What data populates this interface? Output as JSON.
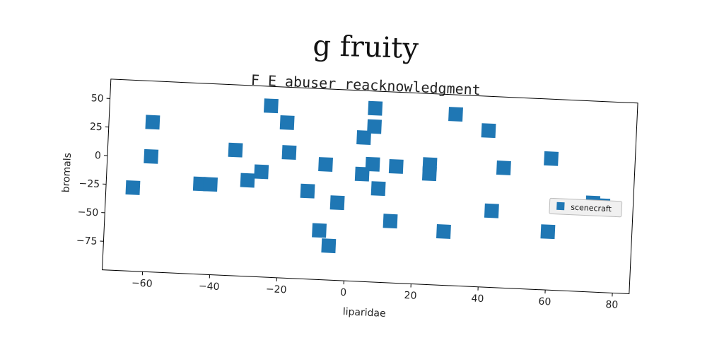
{
  "figure": {
    "title": "g fruity",
    "subtitle": "F E abuser reacknowledgment"
  },
  "chart_data": {
    "type": "scatter",
    "title": "F E abuser reacknowledgment",
    "xlabel": "liparidae",
    "ylabel": "bromals",
    "xlim": [
      -72,
      85
    ],
    "ylim": [
      -100,
      67
    ],
    "xticks": [
      -60,
      -40,
      -20,
      0,
      20,
      40,
      60,
      80
    ],
    "yticks": [
      50,
      25,
      0,
      -25,
      -50,
      -75
    ],
    "grid": false,
    "legend_position": "right",
    "series": [
      {
        "name": "scenecraft",
        "color": "#1f77b4",
        "marker": "square",
        "x": [
          -64,
          -59,
          -59,
          -44,
          -41,
          -34,
          -30,
          -26,
          -24,
          -19,
          -18,
          -12,
          -8,
          -7,
          -5,
          -3,
          4,
          4,
          7,
          7,
          7,
          9,
          13,
          14,
          24,
          24,
          29,
          31,
          41,
          43,
          46,
          60,
          60,
          73,
          76
        ],
        "y": [
          -27,
          1,
          31,
          -21,
          -21,
          10,
          -16,
          -8,
          50,
          36,
          10,
          -23,
          -57,
          1,
          -70,
          -32,
          26,
          -6,
          36,
          52,
          3,
          -18,
          -46,
          2,
          5,
          -3,
          -53,
          50,
          37,
          -33,
          5,
          15,
          -49,
          -22,
          -24
        ]
      }
    ]
  }
}
